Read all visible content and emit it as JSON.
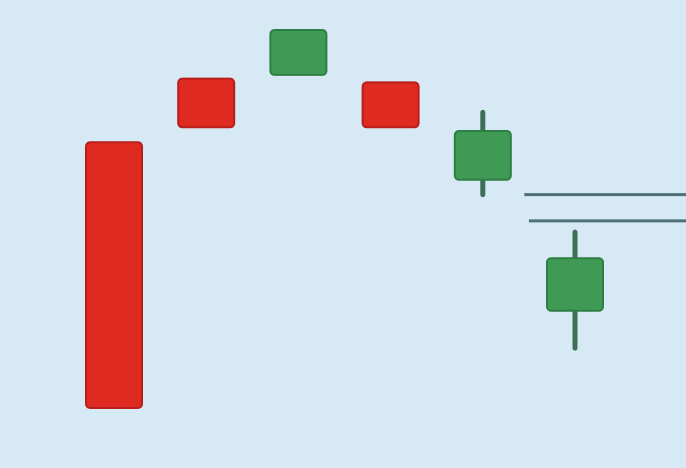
{
  "chart_data": {
    "type": "candlestick",
    "title": "",
    "xlabel": "",
    "ylabel": "",
    "grid": false,
    "ylim": [
      0,
      100
    ],
    "colors": {
      "background": "#d7e9f4",
      "bullish": "#3f9a56",
      "bearish": "#df2a22",
      "wick": "#3d6f56",
      "level": "#4f6f75"
    },
    "candles": [
      {
        "open": 87,
        "close": 16,
        "high": 87,
        "low": 16,
        "direction": "bearish"
      },
      {
        "open": 104,
        "close": 91,
        "high": 104,
        "low": 91,
        "direction": "bearish"
      },
      {
        "open": 105,
        "close": 117,
        "high": 117,
        "low": 105,
        "direction": "bullish"
      },
      {
        "open": 103,
        "close": 91,
        "high": 103,
        "low": 91,
        "direction": "bearish"
      },
      {
        "open": 77,
        "close": 90,
        "high": 95,
        "low": 73,
        "direction": "bullish"
      },
      {
        "open": 42,
        "close": 56,
        "high": 63,
        "low": 32,
        "direction": "bullish"
      }
    ],
    "levels": [
      {
        "value": 73,
        "x_range": [
          4.45,
          6.32
        ]
      },
      {
        "value": 66,
        "x_range": [
          4.5,
          6.3
        ]
      }
    ]
  }
}
